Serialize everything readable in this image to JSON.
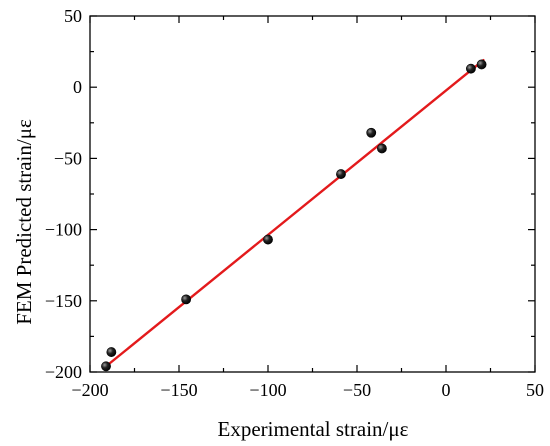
{
  "chart_data": {
    "type": "scatter",
    "title": "",
    "xlabel": "Experimental strain/με",
    "ylabel": "FEM Predicted strain/με",
    "xlim": [
      -200,
      50
    ],
    "ylim": [
      -200,
      50
    ],
    "xticks": [
      -200,
      -150,
      -100,
      -50,
      0,
      50
    ],
    "yticks": [
      -200,
      -150,
      -100,
      -50,
      0,
      50
    ],
    "xtick_labels": [
      "−200",
      "−150",
      "−100",
      "−50",
      "0",
      "50"
    ],
    "ytick_labels": [
      "−200",
      "−150",
      "−100",
      "−50",
      "0",
      "50"
    ],
    "grid": false,
    "legend": "none",
    "series": [
      {
        "kind": "points",
        "color": "#000000",
        "x": [
          -191,
          -188,
          -146,
          -100,
          -59,
          -42,
          -36,
          14,
          20
        ],
        "y": [
          -196,
          -186,
          -149,
          -107,
          -61,
          -32,
          -43,
          13,
          16
        ]
      },
      {
        "kind": "fit-line",
        "color": "#e31a1c",
        "x": [
          -190,
          21
        ],
        "y": [
          -195,
          19
        ]
      }
    ]
  }
}
